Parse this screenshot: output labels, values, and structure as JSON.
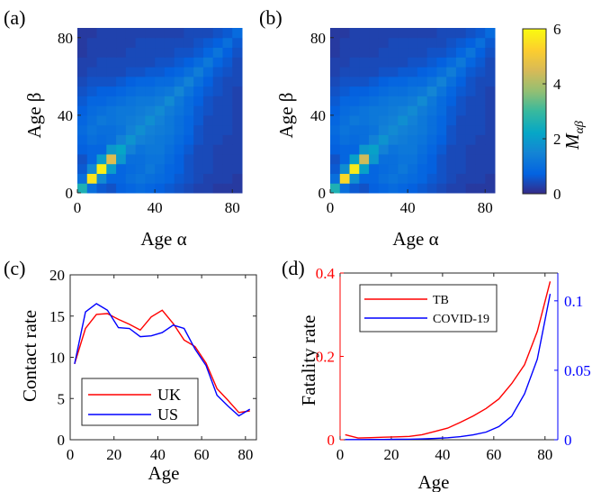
{
  "panels": {
    "a": "(a)",
    "b": "(b)",
    "c": "(c)",
    "d": "(d)"
  },
  "colorbar": {
    "label": "M_{αβ}",
    "label_main": "M",
    "label_sub": "αβ",
    "ticks": [
      "0",
      "2",
      "4",
      "6"
    ],
    "range": [
      0,
      6
    ],
    "colormap": "parula"
  },
  "chart_data": [
    {
      "id": "a",
      "type": "heatmap",
      "xlabel": "Age α",
      "ylabel": "Age β",
      "xticks": [
        "0",
        "40",
        "80"
      ],
      "yticks": [
        "0",
        "40",
        "80"
      ],
      "bins": 17,
      "range": [
        0,
        85
      ],
      "values": [
        [
          2.6,
          1.0,
          0.6,
          0.5,
          0.7,
          0.8,
          0.9,
          0.8,
          0.7,
          0.6,
          0.5,
          0.4,
          0.3,
          0.3,
          0.2,
          0.2,
          0.2
        ],
        [
          1.0,
          5.6,
          1.6,
          0.8,
          0.8,
          1.0,
          1.1,
          1.0,
          0.9,
          0.8,
          0.6,
          0.5,
          0.4,
          0.3,
          0.3,
          0.3,
          0.2
        ],
        [
          0.6,
          1.6,
          5.8,
          2.0,
          0.8,
          0.9,
          1.0,
          1.2,
          1.0,
          0.8,
          0.7,
          0.5,
          0.4,
          0.4,
          0.3,
          0.3,
          0.3
        ],
        [
          0.5,
          0.8,
          2.0,
          4.6,
          1.9,
          1.0,
          1.0,
          1.1,
          1.1,
          0.9,
          0.7,
          0.5,
          0.4,
          0.4,
          0.3,
          0.3,
          0.3
        ],
        [
          0.7,
          0.8,
          0.8,
          1.9,
          2.2,
          1.4,
          1.1,
          1.2,
          1.2,
          1.0,
          0.8,
          0.6,
          0.4,
          0.4,
          0.3,
          0.3,
          0.3
        ],
        [
          0.8,
          1.0,
          0.9,
          1.0,
          1.4,
          1.8,
          1.4,
          1.3,
          1.2,
          1.1,
          0.9,
          0.7,
          0.5,
          0.4,
          0.4,
          0.3,
          0.3
        ],
        [
          0.9,
          1.1,
          1.0,
          1.0,
          1.1,
          1.4,
          1.7,
          1.4,
          1.3,
          1.2,
          1.0,
          0.8,
          0.5,
          0.4,
          0.4,
          0.4,
          0.3
        ],
        [
          0.8,
          1.0,
          1.2,
          1.1,
          1.2,
          1.3,
          1.4,
          1.7,
          1.4,
          1.2,
          1.0,
          0.8,
          0.6,
          0.4,
          0.4,
          0.4,
          0.3
        ],
        [
          0.7,
          0.9,
          1.0,
          1.1,
          1.2,
          1.2,
          1.3,
          1.4,
          1.6,
          1.3,
          1.1,
          0.9,
          0.6,
          0.5,
          0.4,
          0.4,
          0.3
        ],
        [
          0.6,
          0.8,
          0.8,
          0.9,
          1.0,
          1.1,
          1.2,
          1.2,
          1.3,
          1.6,
          1.2,
          0.9,
          0.7,
          0.5,
          0.4,
          0.4,
          0.3
        ],
        [
          0.5,
          0.6,
          0.7,
          0.7,
          0.8,
          0.9,
          1.0,
          1.0,
          1.1,
          1.2,
          1.5,
          1.1,
          0.8,
          0.6,
          0.5,
          0.4,
          0.3
        ],
        [
          0.4,
          0.5,
          0.5,
          0.5,
          0.6,
          0.7,
          0.8,
          0.8,
          0.9,
          0.9,
          1.1,
          1.4,
          1.0,
          0.7,
          0.5,
          0.4,
          0.4
        ],
        [
          0.3,
          0.4,
          0.4,
          0.4,
          0.4,
          0.5,
          0.5,
          0.6,
          0.6,
          0.7,
          0.8,
          1.0,
          1.3,
          0.9,
          0.6,
          0.5,
          0.4
        ],
        [
          0.3,
          0.3,
          0.4,
          0.4,
          0.4,
          0.4,
          0.4,
          0.4,
          0.5,
          0.5,
          0.6,
          0.7,
          0.9,
          1.2,
          0.8,
          0.6,
          0.4
        ],
        [
          0.2,
          0.3,
          0.3,
          0.3,
          0.3,
          0.4,
          0.4,
          0.4,
          0.4,
          0.4,
          0.5,
          0.5,
          0.6,
          0.8,
          1.1,
          0.7,
          0.5
        ],
        [
          0.2,
          0.3,
          0.3,
          0.3,
          0.3,
          0.3,
          0.4,
          0.4,
          0.4,
          0.4,
          0.4,
          0.4,
          0.5,
          0.6,
          0.7,
          1.0,
          0.6
        ],
        [
          0.2,
          0.2,
          0.3,
          0.3,
          0.3,
          0.3,
          0.3,
          0.3,
          0.3,
          0.3,
          0.3,
          0.4,
          0.4,
          0.4,
          0.5,
          0.6,
          0.9
        ]
      ]
    },
    {
      "id": "b",
      "type": "heatmap",
      "xlabel": "Age α",
      "ylabel": "Age β",
      "xticks": [
        "0",
        "40",
        "80"
      ],
      "yticks": [
        "0",
        "40",
        "80"
      ],
      "bins": 17,
      "range": [
        0,
        85
      ],
      "values": [
        [
          2.6,
          1.0,
          0.6,
          0.5,
          0.7,
          0.8,
          0.9,
          0.8,
          0.7,
          0.6,
          0.5,
          0.4,
          0.3,
          0.3,
          0.2,
          0.2,
          0.2
        ],
        [
          1.0,
          5.4,
          1.7,
          0.8,
          0.8,
          1.0,
          1.1,
          1.0,
          0.9,
          0.8,
          0.6,
          0.5,
          0.4,
          0.3,
          0.3,
          0.3,
          0.2
        ],
        [
          0.6,
          1.7,
          5.7,
          2.1,
          0.8,
          0.9,
          1.0,
          1.2,
          1.0,
          0.8,
          0.7,
          0.5,
          0.4,
          0.4,
          0.3,
          0.3,
          0.3
        ],
        [
          0.5,
          0.8,
          2.1,
          4.4,
          1.9,
          1.0,
          1.0,
          1.1,
          1.1,
          0.9,
          0.7,
          0.5,
          0.4,
          0.4,
          0.3,
          0.3,
          0.3
        ],
        [
          0.7,
          0.8,
          0.8,
          1.9,
          2.1,
          1.4,
          1.1,
          1.2,
          1.2,
          1.0,
          0.8,
          0.6,
          0.4,
          0.4,
          0.3,
          0.3,
          0.3
        ],
        [
          0.8,
          1.0,
          0.9,
          1.0,
          1.4,
          1.8,
          1.4,
          1.3,
          1.2,
          1.1,
          0.9,
          0.7,
          0.5,
          0.4,
          0.4,
          0.3,
          0.3
        ],
        [
          0.9,
          1.1,
          1.0,
          1.0,
          1.1,
          1.4,
          1.6,
          1.4,
          1.3,
          1.2,
          1.0,
          0.8,
          0.5,
          0.4,
          0.4,
          0.4,
          0.3
        ],
        [
          0.8,
          1.0,
          1.2,
          1.1,
          1.2,
          1.3,
          1.4,
          1.7,
          1.4,
          1.2,
          1.0,
          0.8,
          0.6,
          0.4,
          0.4,
          0.4,
          0.3
        ],
        [
          0.7,
          0.9,
          1.0,
          1.1,
          1.2,
          1.2,
          1.3,
          1.4,
          1.6,
          1.3,
          1.1,
          0.9,
          0.6,
          0.5,
          0.4,
          0.4,
          0.3
        ],
        [
          0.6,
          0.8,
          0.8,
          0.9,
          1.0,
          1.1,
          1.2,
          1.2,
          1.3,
          1.6,
          1.2,
          0.9,
          0.7,
          0.5,
          0.4,
          0.4,
          0.3
        ],
        [
          0.5,
          0.6,
          0.7,
          0.7,
          0.8,
          0.9,
          1.0,
          1.0,
          1.1,
          1.2,
          1.5,
          1.1,
          0.8,
          0.6,
          0.5,
          0.4,
          0.3
        ],
        [
          0.4,
          0.5,
          0.5,
          0.5,
          0.6,
          0.7,
          0.8,
          0.8,
          0.9,
          0.9,
          1.1,
          1.4,
          1.0,
          0.7,
          0.5,
          0.4,
          0.4
        ],
        [
          0.3,
          0.4,
          0.4,
          0.4,
          0.4,
          0.5,
          0.5,
          0.6,
          0.6,
          0.7,
          0.8,
          1.0,
          1.3,
          0.9,
          0.6,
          0.5,
          0.4
        ],
        [
          0.3,
          0.3,
          0.4,
          0.4,
          0.4,
          0.4,
          0.4,
          0.4,
          0.5,
          0.5,
          0.6,
          0.7,
          0.9,
          1.2,
          0.8,
          0.6,
          0.4
        ],
        [
          0.2,
          0.3,
          0.3,
          0.3,
          0.3,
          0.4,
          0.4,
          0.4,
          0.4,
          0.4,
          0.5,
          0.5,
          0.6,
          0.8,
          1.1,
          0.7,
          0.5
        ],
        [
          0.2,
          0.3,
          0.3,
          0.3,
          0.3,
          0.3,
          0.4,
          0.4,
          0.4,
          0.4,
          0.4,
          0.4,
          0.5,
          0.6,
          0.7,
          1.0,
          0.6
        ],
        [
          0.2,
          0.2,
          0.3,
          0.3,
          0.3,
          0.3,
          0.3,
          0.3,
          0.3,
          0.3,
          0.3,
          0.4,
          0.4,
          0.4,
          0.5,
          0.6,
          0.9
        ]
      ]
    },
    {
      "id": "c",
      "type": "line",
      "xlabel": "Age",
      "ylabel": "Contact rate",
      "xlim": [
        0,
        85
      ],
      "ylim": [
        0,
        20
      ],
      "xticks": [
        0,
        20,
        40,
        60,
        80
      ],
      "yticks": [
        0,
        5,
        10,
        15,
        20
      ],
      "legend": "bottom-left",
      "series": [
        {
          "name": "UK",
          "color": "#ff0000",
          "x": [
            2,
            7,
            12,
            17,
            22,
            27,
            32,
            37,
            42,
            47,
            52,
            57,
            62,
            67,
            72,
            77,
            82
          ],
          "y": [
            9.2,
            13.5,
            15.2,
            15.3,
            14.6,
            14.0,
            13.3,
            14.9,
            15.7,
            14.1,
            12.1,
            11.3,
            9.3,
            6.2,
            4.8,
            3.3,
            3.5
          ]
        },
        {
          "name": "US",
          "color": "#0000ff",
          "x": [
            2,
            7,
            12,
            17,
            22,
            27,
            32,
            37,
            42,
            47,
            52,
            57,
            62,
            67,
            72,
            77,
            82
          ],
          "y": [
            9.2,
            15.5,
            16.5,
            15.7,
            13.6,
            13.5,
            12.5,
            12.6,
            13.0,
            13.9,
            13.5,
            11.0,
            9.0,
            5.4,
            4.1,
            2.9,
            3.7
          ]
        }
      ]
    },
    {
      "id": "d",
      "type": "line",
      "xlabel": "Age",
      "ylabel": "Fatality rate",
      "xlim": [
        0,
        85
      ],
      "xticks": [
        0,
        20,
        40,
        60,
        80
      ],
      "ylim_left": [
        0,
        0.4
      ],
      "yticks_left": [
        "0",
        "0.2",
        "0.4"
      ],
      "ylim_right": [
        0,
        0.12
      ],
      "yticks_right": [
        "0",
        "0.05",
        "0.1"
      ],
      "legend": "top-left",
      "series": [
        {
          "name": "TB",
          "color": "#ff0000",
          "axis": "left",
          "x": [
            2,
            7,
            12,
            17,
            22,
            27,
            32,
            37,
            42,
            47,
            52,
            57,
            62,
            67,
            72,
            77,
            82
          ],
          "y": [
            0.012,
            0.004,
            0.005,
            0.006,
            0.007,
            0.008,
            0.012,
            0.02,
            0.028,
            0.042,
            0.057,
            0.075,
            0.098,
            0.135,
            0.18,
            0.26,
            0.38
          ]
        },
        {
          "name": "COVID-19",
          "color": "#0000ff",
          "axis": "right",
          "x": [
            2,
            7,
            12,
            17,
            22,
            27,
            32,
            37,
            42,
            47,
            52,
            57,
            62,
            67,
            72,
            77,
            82
          ],
          "y": [
            0.0001,
            0.0001,
            0.0002,
            0.0002,
            0.0003,
            0.0004,
            0.0006,
            0.0009,
            0.0014,
            0.0022,
            0.0035,
            0.0055,
            0.0095,
            0.017,
            0.033,
            0.058,
            0.105
          ]
        }
      ]
    }
  ]
}
